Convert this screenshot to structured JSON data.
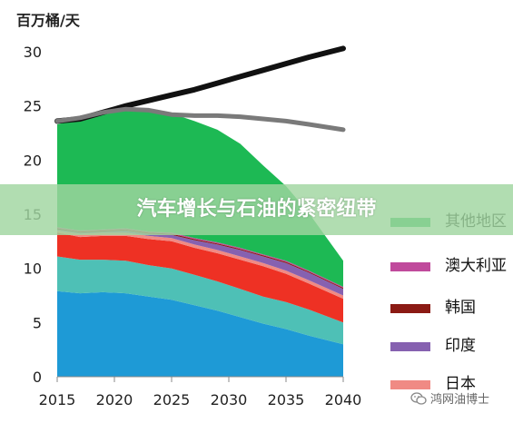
{
  "chart_data": {
    "type": "area",
    "ylabel": "百万桶/天",
    "ylim": [
      0,
      30
    ],
    "yticks": [
      "0",
      "5",
      "10",
      "15",
      "20",
      "25",
      "30"
    ],
    "xlim": [
      2015,
      2040
    ],
    "xticks": [
      "2015",
      "2020",
      "2025",
      "2030",
      "2035",
      "2040"
    ],
    "grid": false,
    "x": [
      2015,
      2017,
      2019,
      2021,
      2023,
      2025,
      2027,
      2029,
      2031,
      2033,
      2035,
      2037,
      2040
    ],
    "stacked_series": [
      {
        "name": "",
        "color": "#1e9ad6",
        "values": [
          7.9,
          7.7,
          7.8,
          7.7,
          7.4,
          7.1,
          6.6,
          6.1,
          5.5,
          4.9,
          4.4,
          3.8,
          3.0
        ]
      },
      {
        "name": "",
        "color": "#4ec0b6",
        "values": [
          3.2,
          3.1,
          3.0,
          3.0,
          2.9,
          2.9,
          2.8,
          2.7,
          2.6,
          2.5,
          2.5,
          2.4,
          2.0
        ]
      },
      {
        "name": "",
        "color": "#ee3124",
        "values": [
          2.2,
          2.1,
          2.2,
          2.3,
          2.4,
          2.5,
          2.5,
          2.6,
          2.7,
          2.8,
          2.6,
          2.4,
          2.2
        ]
      },
      {
        "name": "日本",
        "color": "#f08a84",
        "values": [
          0.2,
          0.3,
          0.3,
          0.3,
          0.3,
          0.3,
          0.3,
          0.3,
          0.3,
          0.3,
          0.3,
          0.3,
          0.3
        ]
      },
      {
        "name": "印度",
        "color": "#8661b0",
        "values": [
          0.1,
          0.1,
          0.1,
          0.2,
          0.2,
          0.3,
          0.4,
          0.5,
          0.6,
          0.6,
          0.7,
          0.7,
          0.6
        ]
      },
      {
        "name": "韩国",
        "color": "#8b1a14",
        "values": [
          0.1,
          0.1,
          0.1,
          0.1,
          0.1,
          0.1,
          0.1,
          0.1,
          0.1,
          0.1,
          0.1,
          0.1,
          0.1
        ]
      },
      {
        "name": "澳大利亚",
        "color": "#c04a9c",
        "values": [
          0.1,
          0.1,
          0.1,
          0.1,
          0.1,
          0.1,
          0.1,
          0.1,
          0.1,
          0.1,
          0.1,
          0.1,
          0.1
        ]
      },
      {
        "name": "其他地区",
        "color": "#1db954",
        "values": [
          9.5,
          10.3,
          10.9,
          10.9,
          11.3,
          11.0,
          10.8,
          10.4,
          9.6,
          8.2,
          6.9,
          5.3,
          2.4
        ]
      }
    ],
    "lines": [
      {
        "name": "",
        "color": "#111111",
        "values": [
          23.6,
          23.8,
          24.4,
          25.0,
          25.5,
          26.0,
          26.5,
          27.1,
          27.7,
          28.3,
          28.9,
          29.5,
          30.3
        ]
      },
      {
        "name": "",
        "color": "#7a7a7a",
        "values": [
          23.6,
          23.9,
          24.4,
          24.7,
          24.6,
          24.2,
          24.1,
          24.1,
          24.0,
          23.8,
          23.6,
          23.3,
          22.8
        ]
      }
    ],
    "legend": {
      "placement": "right",
      "items": [
        {
          "label": "其他地区",
          "color": "#1db954"
        },
        {
          "label": "澳大利亚",
          "color": "#c04a9c"
        },
        {
          "label": "韩国",
          "color": "#8b1a14"
        },
        {
          "label": "印度",
          "color": "#8661b0"
        },
        {
          "label": "日本",
          "color": "#f08a84"
        }
      ]
    }
  },
  "banner": {
    "title": "汽车增长与石油的紧密纽带"
  },
  "watermark": {
    "text": "鸿网油博士",
    "icon": "wechat-icon"
  }
}
